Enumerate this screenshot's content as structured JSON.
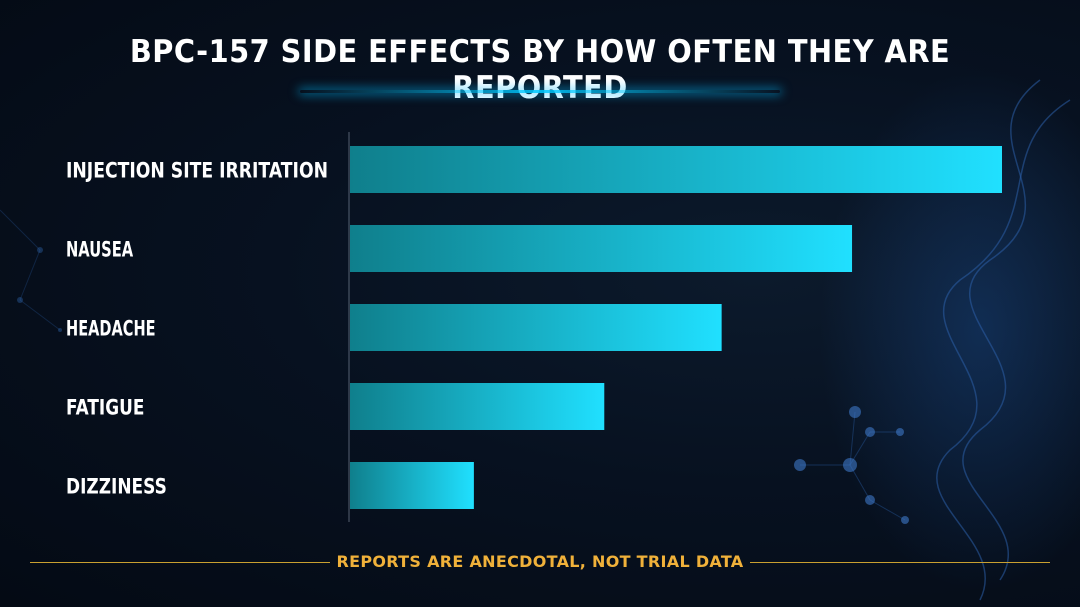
{
  "chart_data": {
    "type": "bar",
    "orientation": "horizontal",
    "title": "BPC-157 SIDE EFFECTS BY HOW OFTEN THEY ARE REPORTED",
    "categories": [
      "INJECTION SITE IRRITATION",
      "NAUSEA",
      "HEADACHE",
      "FATIGUE",
      "DIZZINESS"
    ],
    "values": [
      100,
      77,
      57,
      39,
      19
    ],
    "value_scale": "relative, longest bar = 100",
    "xlim": [
      0,
      100
    ],
    "grid": false,
    "legend": "none",
    "footnote": "REPORTS ARE ANECDOTAL, NOT TRIAL DATA"
  },
  "colors": {
    "bar_start": "#0f7f8c",
    "bar_end": "#20e0ff",
    "title": "#ffffff",
    "footnote": "#f0b13a",
    "background": "#071120"
  },
  "decor": {
    "background_art": "molecule-and-dna-helix-illustration"
  }
}
